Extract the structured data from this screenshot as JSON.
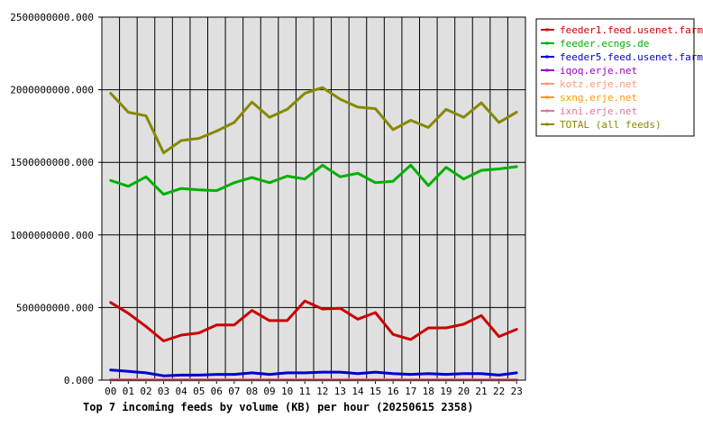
{
  "chart_data": {
    "type": "line",
    "title": "Top 7 incoming feeds by volume (KB) per hour (20250615 2358)",
    "xlabel": "",
    "ylabel": "",
    "categories": [
      "00",
      "01",
      "02",
      "03",
      "04",
      "05",
      "06",
      "07",
      "08",
      "09",
      "10",
      "11",
      "12",
      "13",
      "14",
      "15",
      "16",
      "17",
      "18",
      "19",
      "20",
      "21",
      "22",
      "23"
    ],
    "y_ticks": [
      "0.000",
      "500000000.000",
      "1000000000.000",
      "1500000000.000",
      "2000000000.000",
      "2500000000.000"
    ],
    "ylim": [
      0,
      2500000000
    ],
    "grid": true,
    "legend_placement": "right",
    "plot_background": "#e0e0e0",
    "series": [
      {
        "name": "feeder1.feed.usenet.farm",
        "color": "#cc0000",
        "values": [
          535000000,
          460000000,
          370000000,
          270000000,
          310000000,
          325000000,
          380000000,
          380000000,
          480000000,
          410000000,
          410000000,
          545000000,
          490000000,
          495000000,
          420000000,
          465000000,
          315000000,
          280000000,
          360000000,
          360000000,
          385000000,
          445000000,
          300000000,
          350000000
        ]
      },
      {
        "name": "feeder.ecngs.de",
        "color": "#00b000",
        "values": [
          1375000000,
          1335000000,
          1400000000,
          1280000000,
          1320000000,
          1310000000,
          1305000000,
          1360000000,
          1395000000,
          1360000000,
          1405000000,
          1385000000,
          1480000000,
          1400000000,
          1425000000,
          1360000000,
          1370000000,
          1480000000,
          1340000000,
          1465000000,
          1385000000,
          1445000000,
          1455000000,
          1470000000
        ]
      },
      {
        "name": "feeder5.feed.usenet.farm",
        "color": "#0000cc",
        "values": [
          70000000,
          60000000,
          50000000,
          30000000,
          35000000,
          35000000,
          40000000,
          40000000,
          50000000,
          40000000,
          50000000,
          50000000,
          55000000,
          55000000,
          45000000,
          55000000,
          45000000,
          40000000,
          45000000,
          40000000,
          45000000,
          45000000,
          35000000,
          50000000
        ]
      },
      {
        "name": "iqoq.erje.net",
        "color": "#9900cc",
        "values": [
          3000000,
          3000000,
          3000000,
          3000000,
          3000000,
          3000000,
          3000000,
          3000000,
          3000000,
          3000000,
          3000000,
          3000000,
          3000000,
          3000000,
          3000000,
          3000000,
          3000000,
          3000000,
          3000000,
          3000000,
          3000000,
          3000000,
          3000000,
          3000000
        ]
      },
      {
        "name": "kotz.erje.net",
        "color": "#ff9977",
        "values": [
          2000000,
          2000000,
          2000000,
          2000000,
          2000000,
          2000000,
          2000000,
          2000000,
          2000000,
          2000000,
          2000000,
          2000000,
          2000000,
          2000000,
          2000000,
          2000000,
          2000000,
          2000000,
          2000000,
          2000000,
          2000000,
          2000000,
          2000000,
          2000000
        ]
      },
      {
        "name": "sxng.erje.net",
        "color": "#ff9900",
        "values": [
          2000000,
          2000000,
          2000000,
          2000000,
          2000000,
          2000000,
          2000000,
          2000000,
          2000000,
          2000000,
          2000000,
          2000000,
          2000000,
          2000000,
          2000000,
          2000000,
          2000000,
          2000000,
          2000000,
          2000000,
          2000000,
          2000000,
          2000000,
          2000000
        ]
      },
      {
        "name": "ixni.erje.net",
        "color": "#dd7799",
        "values": [
          1000000,
          1000000,
          1000000,
          1000000,
          1000000,
          1000000,
          1000000,
          1000000,
          1000000,
          1000000,
          1000000,
          1000000,
          1000000,
          1000000,
          1000000,
          1000000,
          1000000,
          1000000,
          1000000,
          1000000,
          1000000,
          1000000,
          1000000,
          1000000
        ]
      },
      {
        "name": "TOTAL (all feeds)",
        "color": "#888800",
        "values": [
          1975000000,
          1845000000,
          1820000000,
          1565000000,
          1650000000,
          1665000000,
          1715000000,
          1775000000,
          1915000000,
          1810000000,
          1865000000,
          1975000000,
          2015000000,
          1935000000,
          1880000000,
          1870000000,
          1725000000,
          1790000000,
          1740000000,
          1865000000,
          1810000000,
          1910000000,
          1775000000,
          1845000000
        ]
      }
    ]
  }
}
